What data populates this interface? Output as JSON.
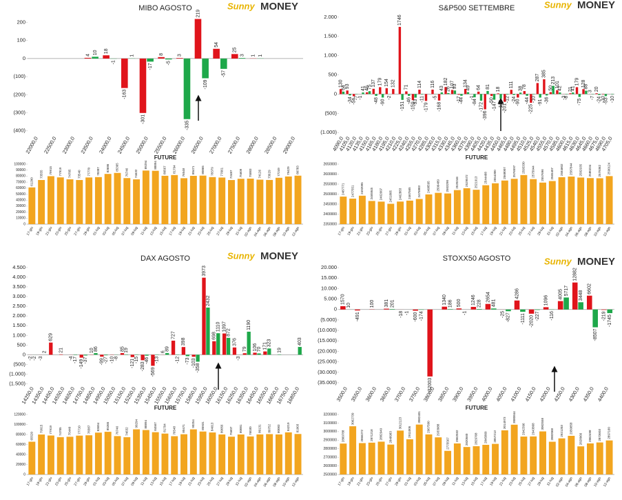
{
  "brand": [
    "Sunny",
    "MONEY"
  ],
  "chart_data": [
    {
      "type": "bar",
      "title": "MIBO AGOSTO",
      "categories": [
        "22000,0",
        "22500,0",
        "23000,0",
        "23500,0",
        "24000,0",
        "24500,0",
        "25000,0",
        "25500,0",
        "26000,0",
        "26500,0",
        "27000,0",
        "27500,0",
        "28000,0",
        "28500,0",
        "29000,0"
      ],
      "series": [
        {
          "color": "#e0141b",
          "values": [
            0,
            0,
            0,
            4,
            18,
            -163,
            -301,
            8,
            3,
            219,
            54,
            25,
            1,
            0,
            0
          ]
        },
        {
          "color": "#1ea84a",
          "values": [
            0,
            0,
            0,
            10,
            -1,
            1,
            -17,
            -5,
            -335,
            -109,
            -57,
            3,
            1,
            0,
            0
          ]
        }
      ],
      "ylim": [
        -420,
        240
      ],
      "yticks": [
        200,
        100,
        0,
        {
          "value": -100,
          "label": "(100)"
        },
        {
          "value": -200,
          "label": "(200)"
        },
        {
          "value": -300,
          "label": "(300)"
        },
        {
          "value": -400,
          "label": "(400)"
        }
      ],
      "grid": false
    },
    {
      "type": "bar",
      "title": "FUTURE",
      "color": "#f2a51f",
      "categories": [
        "17-giu",
        "19-giu",
        "21-giu",
        "23-giu",
        "25-giu",
        "27-giu",
        "29-giu",
        "01-lug",
        "03-lug",
        "05-lug",
        "07-lug",
        "09-lug",
        "11-lug",
        "13-lug",
        "15-lug",
        "17-lug",
        "19-lug",
        "21-lug",
        "23-lug",
        "25-lug",
        "27-lug",
        "29-lug",
        "31-lug",
        "02-ago",
        "04-ago",
        "06-ago",
        "08-ago",
        "10-ago",
        "12-ago"
      ],
      "values": [
        61200,
        73555,
        79915,
        77919,
        74705,
        73540,
        77770,
        78387,
        83686,
        85365,
        76746,
        74632,
        89294,
        88894,
        80567,
        81794,
        76548,
        80471,
        80865,
        78379,
        77661,
        73487,
        75609,
        75883,
        74126,
        73629,
        77249,
        79429,
        80783
      ],
      "ylim": [
        0,
        100000
      ],
      "yticks": [
        0,
        10000,
        20000,
        30000,
        40000,
        50000,
        60000,
        70000,
        80000,
        90000,
        100000
      ],
      "grid": false
    },
    {
      "type": "bar",
      "title": "S&P500 SETTEMBRE",
      "categories": [
        "4090,0",
        "4105,0",
        "4120,0",
        "4135,0",
        "4150,0",
        "4165,0",
        "4180,0",
        "4195,0",
        "4210,0",
        "4225,0",
        "4240,0",
        "4255,0",
        "4270,0",
        "4285,0",
        "4300,0",
        "4315,0",
        "4330,0",
        "4345,0",
        "4360,0",
        "4375,0",
        "4390,0",
        "4405,0",
        "4420,0",
        "4435,0",
        "4450,0",
        "4465,0",
        "4480,0",
        "4495,0",
        "4510,0",
        "4525,0",
        "4540,0",
        "4555,0",
        "4570,0",
        "4585,0",
        "4600,0",
        "4615,0",
        "4630,0",
        "4645,0",
        "4660,0",
        "4675,0",
        "4690,0",
        "4705,0"
      ],
      "series": [
        {
          "color": "#e0141b",
          "values": [
            130,
            93,
            -56,
            -1,
            46,
            137,
            179,
            154,
            132,
            1746,
            71,
            -159,
            114,
            -179,
            116,
            -168,
            182,
            107,
            -17,
            134,
            -1,
            64,
            -396,
            -50,
            18,
            -201,
            111,
            -90,
            78,
            -225,
            287,
            385,
            50,
            101,
            -3,
            21,
            179,
            128,
            3,
            20,
            -10,
            0
          ]
        },
        {
          "color": "#1ea84a",
          "values": [
            64,
            -34,
            -7,
            41,
            75,
            -48,
            -90,
            -2,
            0,
            -151,
            -46,
            -93,
            -11,
            0,
            -5,
            43,
            26,
            93,
            -44,
            49,
            -84,
            -172,
            81,
            -147,
            -118,
            -12,
            -24,
            38,
            -44,
            -10,
            -91,
            -36,
            213,
            42,
            -8,
            41,
            -75,
            88,
            -7,
            -24,
            -53,
            -10
          ]
        }
      ],
      "ylim": [
        -1050,
        2050
      ],
      "yticks": [
        {
          "value": 2000,
          "label": "2.000"
        },
        {
          "value": 1500,
          "label": "1.500"
        },
        {
          "value": 1000,
          "label": "1.000"
        },
        500,
        0,
        {
          "value": -500,
          "label": "(500)"
        },
        {
          "value": -1000,
          "label": "(1.000)"
        }
      ],
      "grid": false
    },
    {
      "type": "bar",
      "title": "FUTURE",
      "color": "#f2a51f",
      "categories": [
        "17-giu",
        "19-giu",
        "21-giu",
        "23-giu",
        "25-giu",
        "27-giu",
        "29-giu",
        "01-lug",
        "03-lug",
        "05-lug",
        "07-lug",
        "09-lug",
        "11-lug",
        "13-lug",
        "15-lug",
        "17-lug",
        "19-lug",
        "21-lug",
        "23-lug",
        "25-lug",
        "27-lug",
        "29-lug",
        "31-lug",
        "02-ago",
        "04-ago",
        "06-ago",
        "08-ago",
        "10-ago",
        "12-ago"
      ],
      "values": [
        2487771,
        2477551,
        2492095,
        2465845,
        2462607,
        2451805,
        2462883,
        2467565,
        2475883,
        2498595,
        2506489,
        2503290,
        2520246,
        2529572,
        2521913,
        2544488,
        2554300,
        2568007,
        2576597,
        2595330,
        2575044,
        2557696,
        2565407,
        2584602,
        2587844,
        2582935,
        2580234,
        2579362,
        2590124
      ],
      "ylim": [
        2350000,
        2650000
      ],
      "yticks": [
        2350000,
        2400000,
        2450000,
        2500000,
        2550000,
        2600000,
        2650000
      ],
      "grid": false
    },
    {
      "type": "bar",
      "title": "DAX AGOSTO",
      "categories": [
        "14250,0",
        "14350,0",
        "14450,0",
        "14550,0",
        "14650,0",
        "14750,0",
        "14850,0",
        "14950,0",
        "15050,0",
        "15150,0",
        "15250,0",
        "15350,0",
        "15450,0",
        "15550,0",
        "15650,0",
        "15750,0",
        "15850,0",
        "15950,0",
        "16050,0",
        "16150,0",
        "16250,0",
        "16350,0",
        "16450,0",
        "16550,0",
        "16650,0",
        "16750,0",
        "16850,0"
      ],
      "series": [
        {
          "color": "#e0141b",
          "values": [
            -2,
            -3,
            629,
            21,
            -4,
            -149,
            10,
            -99,
            -10,
            85,
            -121,
            -283,
            -569,
            6,
            727,
            398,
            -103,
            3973,
            698,
            1097,
            376,
            79,
            106,
            171,
            0,
            0,
            0
          ]
        },
        {
          "color": "#1ea84a",
          "values": [
            -2,
            2,
            0,
            0,
            -17,
            -37,
            86,
            -27,
            -8,
            19,
            -15,
            -46,
            -13,
            89,
            -12,
            -73,
            -358,
            2432,
            1110,
            872,
            -3,
            1190,
            70,
            323,
            19,
            0,
            403
          ]
        }
      ],
      "ylim": [
        -1550,
        4600
      ],
      "yticks": [
        {
          "value": 4500,
          "label": "4.500"
        },
        {
          "value": 4000,
          "label": "4.000"
        },
        {
          "value": 3500,
          "label": "3.500"
        },
        {
          "value": 3000,
          "label": "3.000"
        },
        {
          "value": 2500,
          "label": "2.500"
        },
        {
          "value": 2000,
          "label": "2.000"
        },
        {
          "value": 1500,
          "label": "1.500"
        },
        {
          "value": 1000,
          "label": "1.000"
        },
        500,
        0,
        {
          "value": -500,
          "label": "(500)"
        },
        {
          "value": -1000,
          "label": "(1.000)"
        },
        {
          "value": -1500,
          "label": "(1.500)"
        }
      ],
      "grid": false
    },
    {
      "type": "bar",
      "title": "FUTURE",
      "color": "#f2a51f",
      "categories": [
        "17-giu",
        "19-giu",
        "21-giu",
        "23-giu",
        "25-giu",
        "27-giu",
        "29-giu",
        "01-lug",
        "03-lug",
        "05-lug",
        "07-lug",
        "09-lug",
        "11-lug",
        "13-lug",
        "15-lug",
        "17-lug",
        "19-lug",
        "21-lug",
        "23-lug",
        "25-lug",
        "27-lug",
        "29-lug",
        "31-lug",
        "02-ago",
        "04-ago",
        "06-ago",
        "08-ago",
        "10-ago",
        "12-ago"
      ],
      "values": [
        65520,
        79915,
        77919,
        74705,
        75440,
        77710,
        78387,
        83694,
        85365,
        76746,
        74632,
        90294,
        88894,
        84567,
        81794,
        76548,
        80471,
        90254,
        85931,
        84013,
        80056,
        75607,
        80001,
        76030,
        80131,
        80752,
        80083,
        84219,
        81003
      ],
      "ylim": [
        0,
        120000
      ],
      "yticks": [
        0,
        20000,
        40000,
        60000,
        80000,
        100000,
        120000
      ],
      "grid": false
    },
    {
      "type": "bar",
      "title": "STOXX50 AGOSTO",
      "categories": [
        "3500,0",
        "3550,0",
        "3600,0",
        "3650,0",
        "3700,0",
        "3750,0",
        "3800,0",
        "3850,0",
        "3900,0",
        "3950,0",
        "4000,0",
        "4050,0",
        "4100,0",
        "4150,0",
        "4200,0",
        "4250,0",
        "4300,0",
        "4350,0",
        "4400,0"
      ],
      "series": [
        {
          "color": "#e0141b",
          "values": [
            1570,
            -491,
            100,
            381,
            -18,
            -600,
            -32003,
            1340,
            500,
            1246,
            2654,
            -25,
            4286,
            -2020,
            1096,
            4005,
            12882,
            6602,
            -219
          ]
        },
        {
          "color": "#1ea84a",
          "values": [
            10,
            0,
            0,
            201,
            -1,
            -174,
            0,
            186,
            -1,
            228,
            481,
            -827,
            -1111,
            -227,
            -116,
            5717,
            3448,
            -8507,
            -1745
          ]
        }
      ],
      "ylim": [
        -36000,
        21000
      ],
      "yticks": [
        {
          "value": 20000,
          "label": "20.000"
        },
        {
          "value": 15000,
          "label": "15.000"
        },
        {
          "value": 10000,
          "label": "10.000"
        },
        {
          "value": 5000,
          "label": "5.000"
        },
        0,
        {
          "value": -5000,
          "label": "(5.000)"
        },
        {
          "value": -10000,
          "label": "(10.000)"
        },
        {
          "value": -15000,
          "label": "(15.000)"
        },
        {
          "value": -20000,
          "label": "(20.000)"
        },
        {
          "value": -25000,
          "label": "(25.000)"
        },
        {
          "value": -30000,
          "label": "(30.000)"
        },
        {
          "value": -35000,
          "label": "(35.000)"
        }
      ],
      "grid": false
    },
    {
      "type": "bar",
      "title": "FUTURE",
      "color": "#f2a51f",
      "categories": [
        "17-giu",
        "19-giu",
        "21-giu",
        "23-giu",
        "25-giu",
        "27-giu",
        "29-giu",
        "01-lug",
        "03-lug",
        "05-lug",
        "07-lug",
        "09-lug",
        "11-lug",
        "13-lug",
        "15-lug",
        "17-lug",
        "19-lug",
        "21-lug",
        "23-lug",
        "25-lug",
        "27-lug",
        "29-lug",
        "31-lug",
        "02-ago",
        "04-ago",
        "06-ago",
        "08-ago",
        "10-ago",
        "12-ago"
      ],
      "values": [
        2860788,
        3062739,
        2866272,
        2871218,
        2882949,
        2848983,
        3012123,
        2911005,
        3082401,
        2967500,
        2933088,
        2775567,
        2862032,
        2820560,
        2829768,
        2845860,
        2857213,
        3014973,
        3080844,
        2942396,
        2943868,
        3002558,
        2882068,
        2921203,
        2950858,
        2828066,
        2862498,
        2873603,
        2897160
      ],
      "ylim": [
        2500000,
        3200000
      ],
      "yticks": [
        2500000,
        2600000,
        2700000,
        2800000,
        2900000,
        3000000,
        3100000,
        3200000
      ],
      "grid": false
    }
  ]
}
